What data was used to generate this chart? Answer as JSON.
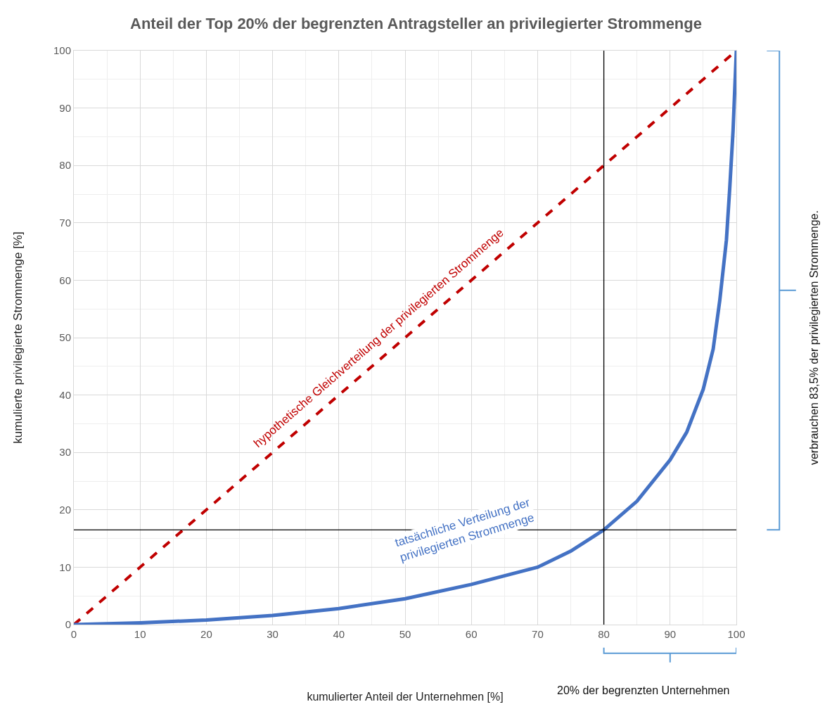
{
  "chart_data": {
    "type": "line",
    "title": "Anteil der Top 20% der begrenzten Antragsteller an privilegierter Strommenge",
    "xlabel": "kumulierter Anteil der Unternehmen [%]",
    "ylabel": "kumulierte privilegierte Strommenge [%]",
    "series": [
      {
        "color": "#c00000",
        "line_style": "dashed",
        "x": [
          0,
          100
        ],
        "values": [
          0,
          100
        ]
      },
      {
        "color": "#4472c4",
        "line_style": "solid",
        "x": [
          0,
          10,
          20,
          30,
          40,
          50,
          60,
          70,
          75,
          80,
          85,
          90,
          92.5,
          95,
          96.5,
          97.5,
          98.5,
          99,
          99.5,
          100
        ],
        "values": [
          0,
          0.3,
          0.8,
          1.6,
          2.8,
          4.5,
          7,
          10,
          12.8,
          16.5,
          21.5,
          28.7,
          33.5,
          41,
          48,
          56.5,
          67,
          76,
          86,
          100
        ]
      }
    ],
    "xlim": [
      0,
      100
    ],
    "ylim": [
      0,
      100
    ],
    "xticks": [
      0,
      10,
      20,
      30,
      40,
      50,
      60,
      70,
      80,
      90,
      100
    ],
    "yticks": [
      0,
      10,
      20,
      30,
      40,
      50,
      60,
      70,
      80,
      90,
      100
    ],
    "grid": true,
    "ref_lines": [
      {
        "axis": "x",
        "value": 80,
        "color": "#000000"
      },
      {
        "axis": "y",
        "value": 16.5,
        "color": "#000000"
      }
    ],
    "annotations": [
      "hypothetische Gleichverteilung der privilegierten Strommenge",
      "tatsächliche Verteilung der\nprivilegierten Strommenge",
      "verbrauchen 83,5% der privilegierten Strommenge.",
      "20% der begrenzten Unternehmen"
    ]
  }
}
